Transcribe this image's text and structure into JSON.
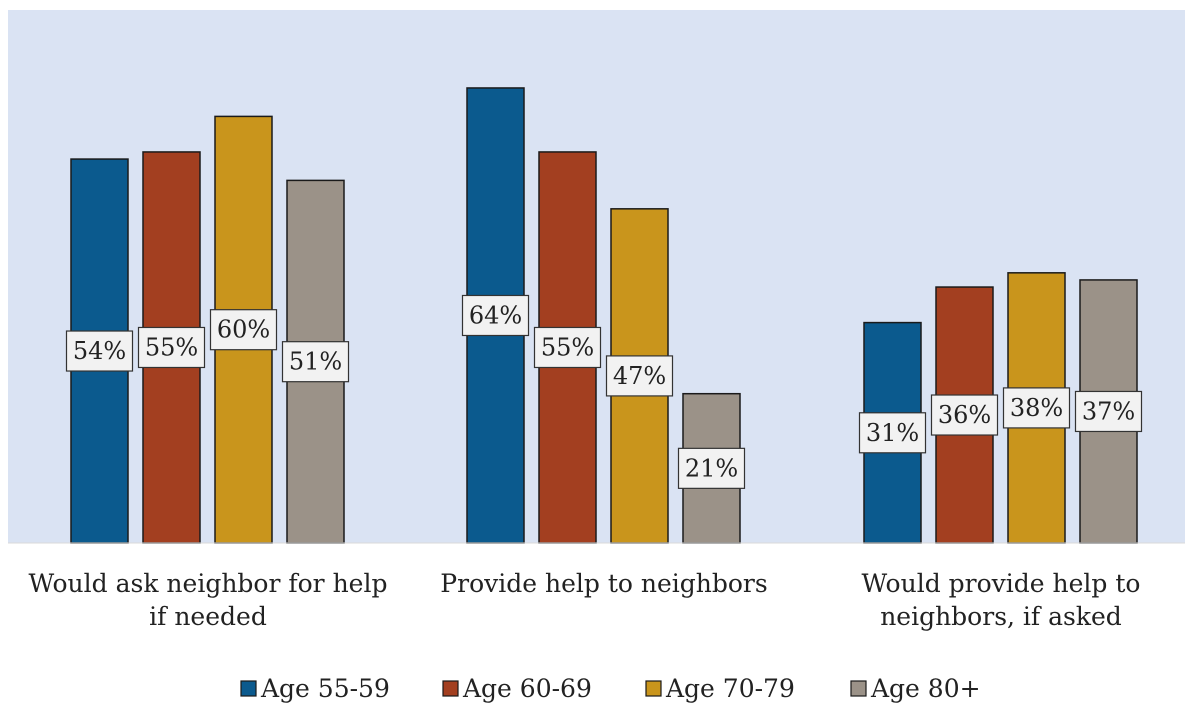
{
  "chart_data": {
    "type": "bar",
    "categories": [
      [
        "Would ask neighbor for help",
        "if needed"
      ],
      [
        "Provide help to neighbors"
      ],
      [
        "Would provide help to",
        "neighbors, if asked"
      ]
    ],
    "series": [
      {
        "name": "Age 55-59",
        "color": "#0b5a8e",
        "values": [
          54,
          64,
          31
        ],
        "labels": [
          "54%",
          "64%",
          "31%"
        ]
      },
      {
        "name": "Age 60-69",
        "color": "#a33f20",
        "values": [
          55,
          55,
          36
        ],
        "labels": [
          "55%",
          "55%",
          "36%"
        ]
      },
      {
        "name": "Age 70-79",
        "color": "#c9951c",
        "values": [
          60,
          47,
          38
        ],
        "labels": [
          "60%",
          "47%",
          "38%"
        ]
      },
      {
        "name": "Age 80+",
        "color": "#9b9288",
        "values": [
          51,
          21,
          37
        ],
        "labels": [
          "51%",
          "21%",
          "37%"
        ]
      }
    ],
    "legend_position": "bottom",
    "grid": false,
    "plot_background": "#dae3f3"
  }
}
